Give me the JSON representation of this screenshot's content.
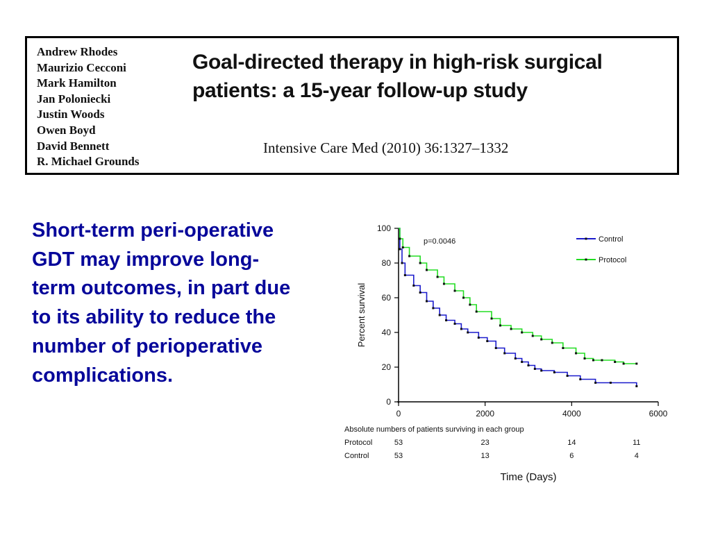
{
  "header": {
    "authors": [
      "Andrew Rhodes",
      "Maurizio Cecconi",
      "Mark Hamilton",
      "Jan Poloniecki",
      "Justin Woods",
      "Owen Boyd",
      "David Bennett",
      "R. Michael Grounds"
    ],
    "title_line1": "Goal-directed therapy in high-risk surgical",
    "title_line2": "patients: a 15-year follow-up study",
    "citation": "Intensive Care Med (2010) 36:1327–1332"
  },
  "statement": "Short-term peri-operative GDT may improve long-term outcomes, in part due to its ability to reduce the number of perioperative complications.",
  "chart_data": {
    "type": "line",
    "xlabel": "Time (Days)",
    "ylabel": "Percent survival",
    "xlim": [
      0,
      6000
    ],
    "ylim": [
      0,
      100
    ],
    "xticks": [
      0,
      2000,
      4000,
      6000
    ],
    "yticks": [
      0,
      20,
      40,
      60,
      80,
      100
    ],
    "annotation": "p=0.0046",
    "legend_position": "top-right",
    "grid": false,
    "series": [
      {
        "name": "Control",
        "color": "#1a1acc",
        "points": [
          [
            0,
            100
          ],
          [
            30,
            88
          ],
          [
            80,
            80
          ],
          [
            150,
            73
          ],
          [
            350,
            67
          ],
          [
            500,
            63
          ],
          [
            650,
            58
          ],
          [
            800,
            54
          ],
          [
            950,
            50
          ],
          [
            1100,
            47
          ],
          [
            1300,
            45
          ],
          [
            1450,
            42
          ],
          [
            1600,
            40
          ],
          [
            1850,
            37
          ],
          [
            2050,
            35
          ],
          [
            2250,
            31
          ],
          [
            2450,
            28
          ],
          [
            2700,
            25
          ],
          [
            2850,
            23
          ],
          [
            3000,
            21
          ],
          [
            3150,
            19
          ],
          [
            3300,
            18
          ],
          [
            3600,
            17
          ],
          [
            3900,
            15
          ],
          [
            4200,
            13
          ],
          [
            4550,
            11
          ],
          [
            4900,
            11
          ],
          [
            5500,
            9
          ]
        ]
      },
      {
        "name": "Protocol",
        "color": "#22dd22",
        "points": [
          [
            0,
            100
          ],
          [
            30,
            94
          ],
          [
            100,
            89
          ],
          [
            250,
            84
          ],
          [
            500,
            80
          ],
          [
            650,
            76
          ],
          [
            900,
            72
          ],
          [
            1050,
            68
          ],
          [
            1300,
            64
          ],
          [
            1500,
            60
          ],
          [
            1650,
            56
          ],
          [
            1800,
            52
          ],
          [
            2150,
            48
          ],
          [
            2350,
            44
          ],
          [
            2600,
            42
          ],
          [
            2850,
            40
          ],
          [
            3100,
            38
          ],
          [
            3300,
            36
          ],
          [
            3550,
            34
          ],
          [
            3800,
            31
          ],
          [
            4100,
            28
          ],
          [
            4300,
            25
          ],
          [
            4500,
            24
          ],
          [
            4700,
            24
          ],
          [
            5000,
            23
          ],
          [
            5200,
            22
          ],
          [
            5500,
            22
          ]
        ]
      }
    ],
    "risk_table": {
      "title": "Absolute numbers of patients surviving in each group",
      "times": [
        0,
        2000,
        4000,
        5500
      ],
      "rows": [
        {
          "label": "Protocol",
          "values": [
            "53",
            "23",
            "14",
            "11"
          ]
        },
        {
          "label": "Control",
          "values": [
            "53",
            "13",
            "6",
            "4"
          ]
        }
      ]
    }
  }
}
